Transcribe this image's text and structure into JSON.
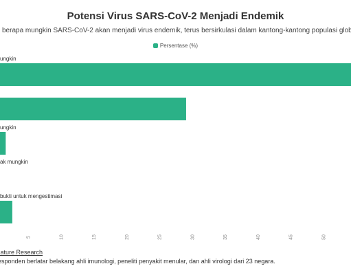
{
  "title": "Potensi Virus SARS-CoV-2 Menjadi Endemik",
  "subtitle": "berapa mungkin SARS-CoV-2 akan menjadi virus endemik, terus bersirkulasi dalam kantong-kantong populasi global",
  "source": "Nature Research",
  "note": "responden berlatar belakang ahli imunologi, peneliti penyakit menular, dan ahli virologi dari 23 negara.",
  "colors": {
    "bar": "#2bb187",
    "tick_text": "#888888",
    "label_text": "#333333"
  },
  "chart_data": {
    "type": "bar",
    "orientation": "horizontal",
    "categories": [
      "ungkin",
      "",
      "ungkin",
      "ak mungkin",
      "bukti untuk mengestimasi"
    ],
    "values": [
      60,
      29,
      1.5,
      0,
      2.5
    ],
    "series": [
      {
        "name": "Persentase (%)",
        "values": [
          60,
          29,
          1.5,
          0,
          2.5
        ]
      }
    ],
    "x_ticks": [
      5,
      10,
      15,
      20,
      25,
      30,
      35,
      40,
      45,
      50,
      55
    ],
    "xlim": [
      0,
      60
    ],
    "legend_position": "top-center",
    "grid": false
  }
}
